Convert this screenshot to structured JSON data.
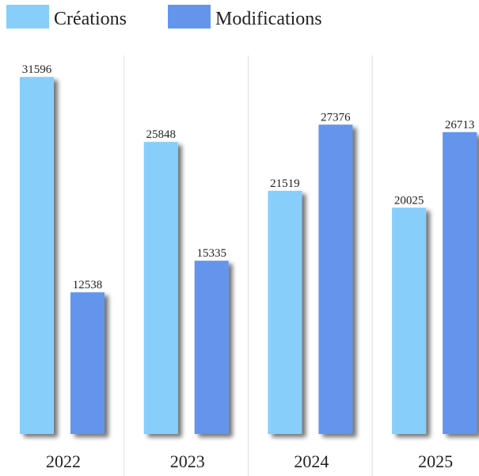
{
  "chart_data": {
    "type": "bar",
    "categories": [
      "2022",
      "2023",
      "2024",
      "2025"
    ],
    "series": [
      {
        "name": "Créations",
        "color": "#87cefa",
        "values": [
          31596,
          25848,
          21519,
          20025
        ]
      },
      {
        "name": "Modifications",
        "color": "#6495ed",
        "values": [
          12538,
          15335,
          27376,
          26713
        ]
      }
    ],
    "ylim": [
      0,
      33500
    ],
    "legend": "top-left"
  }
}
